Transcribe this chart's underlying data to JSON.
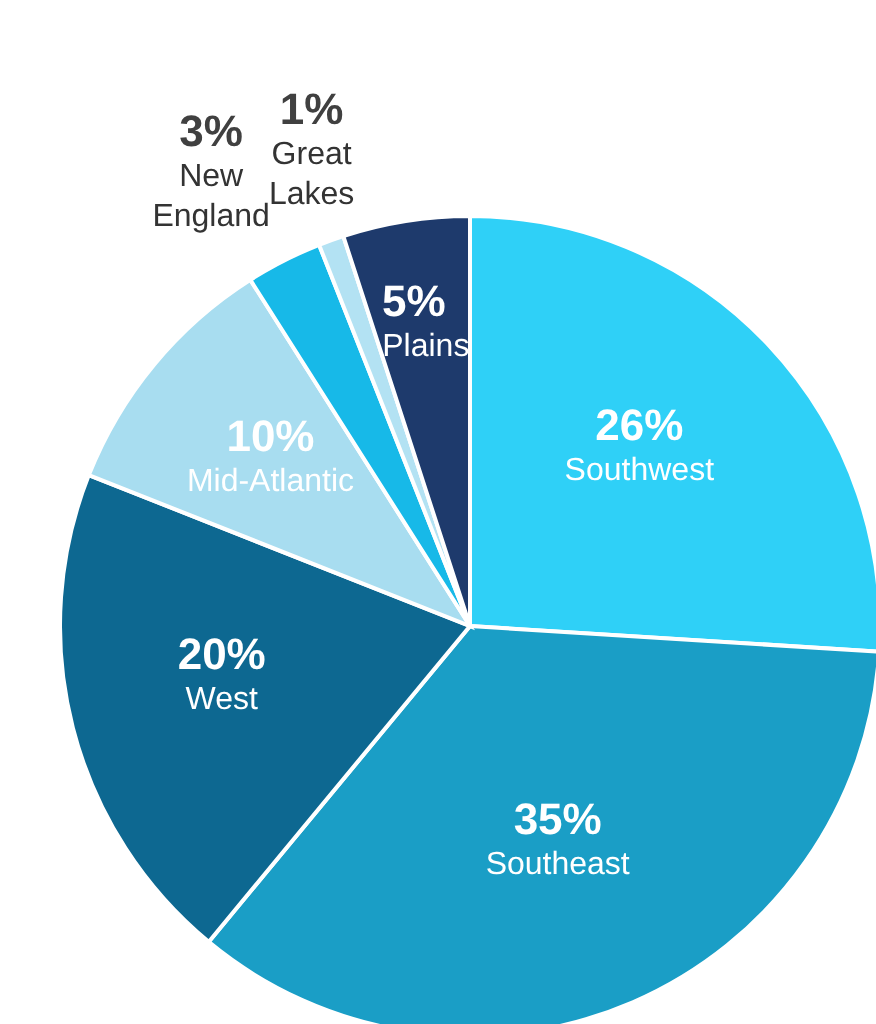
{
  "chart_data": {
    "type": "pie",
    "categories": [
      "Southwest",
      "Southeast",
      "West",
      "Mid-Atlantic",
      "New England",
      "Great Lakes",
      "Plains"
    ],
    "values": [
      26,
      35,
      20,
      10,
      3,
      1,
      5
    ],
    "colors": [
      "#2fd0f7",
      "#1a9ec6",
      "#0d6891",
      "#a8ddf0",
      "#17b9e8",
      "#b3e2f3",
      "#1e3a6c"
    ],
    "value_labels": [
      "26%",
      "35%",
      "20%",
      "10%",
      "3%",
      "1%",
      "5%"
    ]
  }
}
